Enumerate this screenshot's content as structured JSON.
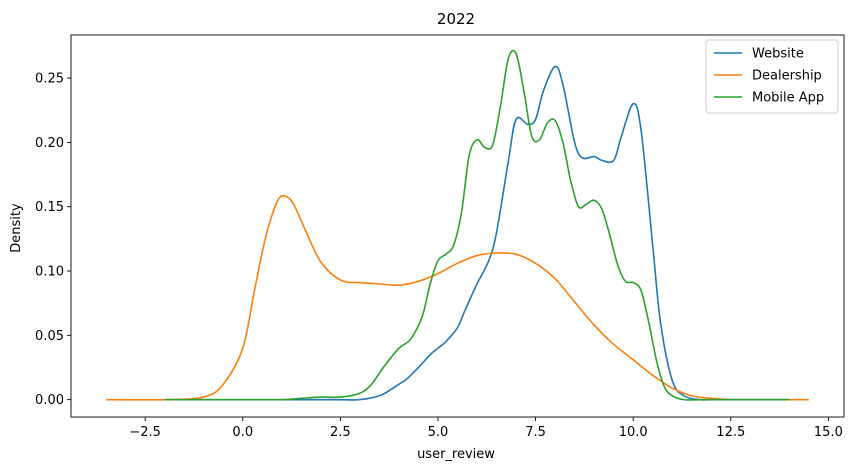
{
  "chart_data": {
    "type": "line",
    "title": "2022",
    "xlabel": "user_review",
    "ylabel": "Density",
    "xlim": [
      -4.4,
      15.4
    ],
    "ylim": [
      -0.0135,
      0.2835
    ],
    "x_ticks": [
      -2.5,
      0.0,
      2.5,
      5.0,
      7.5,
      10.0,
      12.5,
      15.0
    ],
    "x_tick_labels": [
      "−2.5",
      "0.0",
      "2.5",
      "5.0",
      "7.5",
      "10.0",
      "12.5",
      "15.0"
    ],
    "y_ticks": [
      0.0,
      0.05,
      0.1,
      0.15,
      0.2,
      0.25
    ],
    "y_tick_labels": [
      "0.00",
      "0.05",
      "0.10",
      "0.15",
      "0.20",
      "0.25"
    ],
    "grid": false,
    "legend_position": "top-right",
    "series": [
      {
        "name": "Website",
        "color": "#1f77b4",
        "x": [
          -2.0,
          0.0,
          1.0,
          2.0,
          2.5,
          3.0,
          3.5,
          3.8,
          4.0,
          4.2,
          4.5,
          4.8,
          5.0,
          5.2,
          5.5,
          5.7,
          6.0,
          6.3,
          6.5,
          6.8,
          7.0,
          7.3,
          7.5,
          7.7,
          8.0,
          8.2,
          8.5,
          8.7,
          9.0,
          9.2,
          9.5,
          9.7,
          10.0,
          10.2,
          10.5,
          10.7,
          11.0,
          11.3,
          11.7,
          12.0,
          13.0,
          14.0
        ],
        "y": [
          0.0,
          0.0,
          0.0,
          0.0,
          0.0,
          0.0,
          0.003,
          0.008,
          0.012,
          0.016,
          0.025,
          0.035,
          0.04,
          0.045,
          0.056,
          0.07,
          0.09,
          0.108,
          0.13,
          0.185,
          0.218,
          0.214,
          0.218,
          0.24,
          0.259,
          0.245,
          0.2,
          0.188,
          0.189,
          0.186,
          0.186,
          0.205,
          0.23,
          0.21,
          0.12,
          0.06,
          0.015,
          0.003,
          0.0,
          0.0,
          0.0,
          0.0
        ]
      },
      {
        "name": "Dealership",
        "color": "#ff7f0e",
        "x": [
          -3.5,
          -2.0,
          -1.0,
          -0.5,
          0.0,
          0.3,
          0.6,
          0.9,
          1.1,
          1.3,
          1.6,
          2.0,
          2.5,
          3.0,
          3.5,
          4.0,
          4.5,
          5.0,
          5.5,
          6.0,
          6.5,
          7.0,
          7.5,
          8.0,
          8.5,
          9.0,
          9.5,
          10.0,
          10.5,
          11.0,
          11.5,
          12.0,
          12.5,
          13.0,
          14.0,
          14.5
        ],
        "y": [
          0.0,
          0.0,
          0.002,
          0.012,
          0.04,
          0.085,
          0.128,
          0.155,
          0.158,
          0.152,
          0.132,
          0.107,
          0.093,
          0.091,
          0.09,
          0.089,
          0.092,
          0.098,
          0.106,
          0.112,
          0.114,
          0.113,
          0.106,
          0.094,
          0.076,
          0.058,
          0.043,
          0.031,
          0.019,
          0.009,
          0.003,
          0.001,
          0.0,
          0.0,
          0.0,
          0.0
        ]
      },
      {
        "name": "Mobile App",
        "color": "#2ca02c",
        "x": [
          -2.0,
          0.0,
          1.0,
          1.5,
          2.0,
          2.5,
          3.0,
          3.3,
          3.6,
          4.0,
          4.3,
          4.6,
          4.8,
          5.0,
          5.2,
          5.4,
          5.6,
          5.8,
          6.0,
          6.2,
          6.4,
          6.6,
          6.8,
          7.0,
          7.2,
          7.4,
          7.6,
          7.8,
          8.0,
          8.2,
          8.4,
          8.6,
          8.8,
          9.0,
          9.2,
          9.4,
          9.6,
          9.8,
          10.0,
          10.2,
          10.4,
          10.6,
          10.8,
          11.0,
          11.3,
          11.7,
          12.0,
          13.0,
          14.0
        ],
        "y": [
          0.0,
          0.0,
          0.0,
          0.001,
          0.002,
          0.002,
          0.005,
          0.012,
          0.025,
          0.04,
          0.047,
          0.065,
          0.09,
          0.108,
          0.113,
          0.12,
          0.145,
          0.19,
          0.202,
          0.196,
          0.198,
          0.228,
          0.265,
          0.269,
          0.24,
          0.205,
          0.202,
          0.215,
          0.217,
          0.2,
          0.17,
          0.15,
          0.152,
          0.155,
          0.148,
          0.128,
          0.105,
          0.092,
          0.091,
          0.085,
          0.06,
          0.03,
          0.01,
          0.003,
          0.0,
          0.0,
          0.0,
          0.0,
          0.0
        ]
      }
    ]
  }
}
